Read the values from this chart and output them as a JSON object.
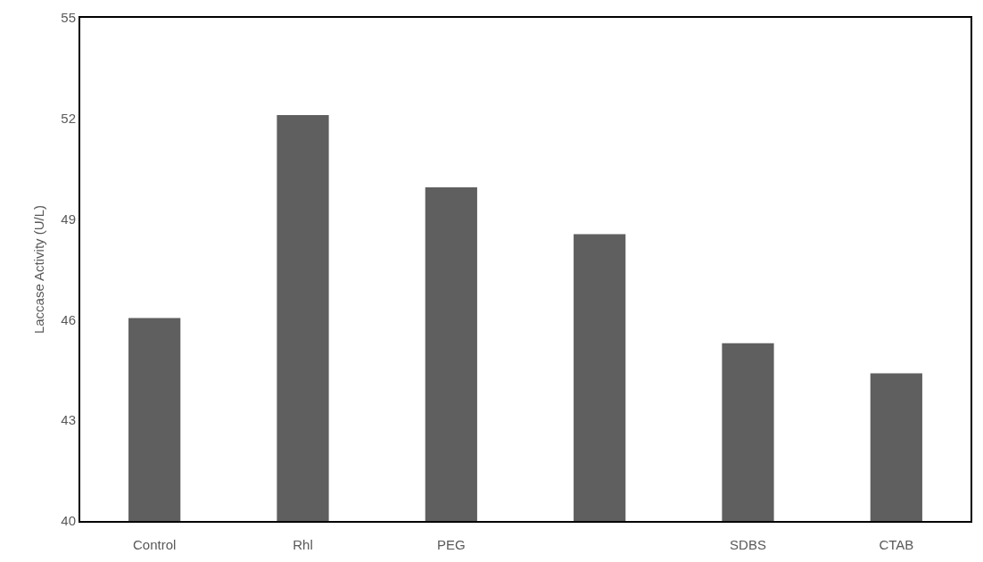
{
  "chart_data": {
    "type": "bar",
    "ylabel": "Laccase Activity (U/L)",
    "categories": [
      "Control",
      "Rhl",
      "PEG",
      null,
      "SDBS",
      "CTAB"
    ],
    "values": [
      46.05,
      52.1,
      49.95,
      48.55,
      45.3,
      44.4
    ],
    "color": "#5f5f5f",
    "ylim": [
      40,
      55
    ],
    "yticks": [
      40,
      43,
      46,
      49,
      52,
      55
    ],
    "grid": false
  }
}
